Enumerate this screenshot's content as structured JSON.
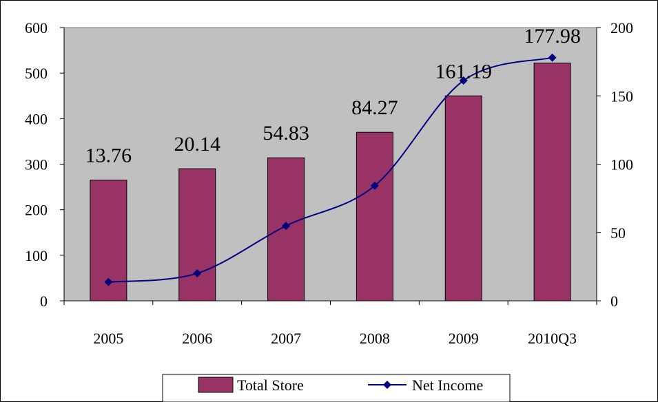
{
  "chart_data": {
    "type": "bar",
    "categories": [
      "2005",
      "2006",
      "2007",
      "2008",
      "2009",
      "2010Q3"
    ],
    "series": [
      {
        "name": "Total Store",
        "type": "bar",
        "axis": "left",
        "values": [
          265,
          290,
          314,
          370,
          450,
          522
        ]
      },
      {
        "name": "Net Income",
        "type": "line",
        "axis": "right",
        "values": [
          13.76,
          20.14,
          54.83,
          84.27,
          161.19,
          177.98
        ],
        "data_labels": [
          "13.76",
          "20.14",
          "54.83",
          "84.27",
          "161.19",
          "177.98"
        ]
      }
    ],
    "y_left": {
      "min": 0,
      "max": 600,
      "ticks": [
        "0",
        "100",
        "200",
        "300",
        "400",
        "500",
        "600"
      ]
    },
    "y_right": {
      "min": 0,
      "max": 200,
      "ticks": [
        "0",
        "50",
        "100",
        "150",
        "200"
      ]
    },
    "grid": false,
    "legend_position": "bottom",
    "colors": {
      "bar_fill": "#993366",
      "line": "#000080",
      "plot_bg": "#c0c0c0"
    }
  }
}
